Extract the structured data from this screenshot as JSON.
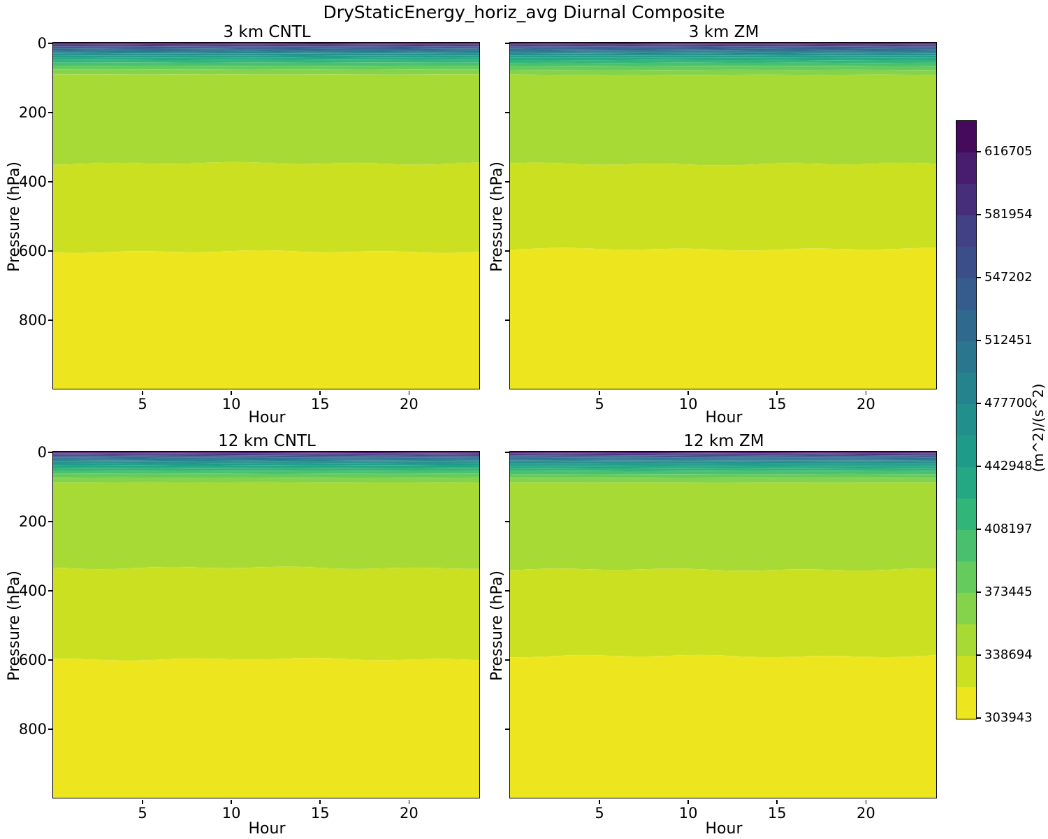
{
  "figure": {
    "title": "DryStaticEnergy_horiz_avg Diurnal Composite",
    "background_color": "#ffffff",
    "text_color": "#000000"
  },
  "chart_data": {
    "type": "heatmap",
    "subtype": "filled-contour-diurnal-composite",
    "title": "DryStaticEnergy_horiz_avg Diurnal Composite",
    "x": {
      "label": "Hour",
      "range": [
        0,
        24
      ],
      "ticks": [
        5,
        10,
        15,
        20
      ]
    },
    "y": {
      "label": "Pressure (hPa)",
      "range": [
        0,
        1000
      ],
      "inverted": true,
      "ticks": [
        0,
        200,
        400,
        600,
        800
      ]
    },
    "grid": false,
    "levels": [
      303943,
      321319,
      338694,
      356070,
      373445,
      390821,
      408197,
      425572,
      442948,
      460324,
      477700,
      495075,
      512451,
      529827,
      547202,
      564578,
      581954,
      599329,
      616705,
      634081
    ],
    "band_colors_low_to_high": [
      "#ede61e",
      "#cbe020",
      "#a7da34",
      "#84d34a",
      "#65cb5d",
      "#49c06d",
      "#32b579",
      "#23a883",
      "#1e9c89",
      "#21908c",
      "#24838d",
      "#2a768e",
      "#2f698e",
      "#355c8c",
      "#3b4e8a",
      "#424186",
      "#462e7b",
      "#481c6e",
      "#460a5d"
    ],
    "panels": [
      {
        "title": "3 km CNTL",
        "row": 0,
        "col": 0,
        "wiggle_phase": 0.5,
        "contour_pressures_hpa": [
          604,
          349,
          92,
          78,
          67,
          58,
          50,
          43,
          37,
          31.5,
          26.5,
          22,
          18,
          14.5,
          11,
          8,
          5.2,
          2.6
        ]
      },
      {
        "title": "3 km ZM",
        "row": 0,
        "col": 1,
        "wiggle_phase": 2.1,
        "contour_pressures_hpa": [
          597,
          351,
          93,
          79,
          68,
          58.5,
          50.5,
          43.5,
          37.5,
          32,
          27,
          22.5,
          18.2,
          14.5,
          11,
          8,
          5.2,
          2.6
        ]
      },
      {
        "title": "12 km CNTL",
        "row": 1,
        "col": 0,
        "wiggle_phase": 4.0,
        "contour_pressures_hpa": [
          600,
          336,
          89,
          75,
          64,
          55,
          47,
          40,
          34,
          29,
          24.5,
          20.5,
          16.8,
          13.5,
          10.3,
          7.5,
          5,
          2.5
        ]
      },
      {
        "title": "12 km ZM",
        "row": 1,
        "col": 1,
        "wiggle_phase": 1.2,
        "contour_pressures_hpa": [
          591,
          341,
          90,
          76,
          65,
          56,
          48,
          41,
          35,
          29.5,
          25,
          20.8,
          17,
          13.6,
          10.4,
          7.6,
          5,
          2.5
        ]
      }
    ],
    "colorbar": {
      "label": "(m^2)/(s^2)",
      "ticks": [
        303943,
        338694,
        373445,
        408197,
        442948,
        477700,
        512451,
        547202,
        581954,
        616705
      ],
      "min": 303943,
      "max": 634081,
      "n_bands": 19
    }
  }
}
